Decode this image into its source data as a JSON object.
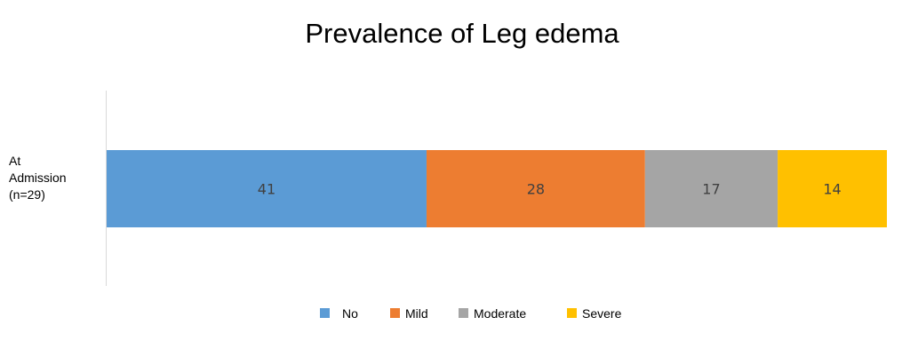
{
  "chart_data": {
    "type": "bar",
    "orientation": "horizontal",
    "stacked": true,
    "title": "Prevalence of Leg edema",
    "categories": [
      [
        "At",
        "Admission",
        "(n=29)"
      ]
    ],
    "series": [
      {
        "name": "No",
        "values": [
          41
        ],
        "color": "#5B9BD5"
      },
      {
        "name": "Mild",
        "values": [
          28
        ],
        "color": "#ED7D31"
      },
      {
        "name": "Moderate",
        "values": [
          17
        ],
        "color": "#A5A5A5"
      },
      {
        "name": "Severe",
        "values": [
          14
        ],
        "color": "#FFC000"
      }
    ],
    "xlim": [
      0,
      100
    ],
    "grid": false,
    "legend_position": "bottom"
  }
}
